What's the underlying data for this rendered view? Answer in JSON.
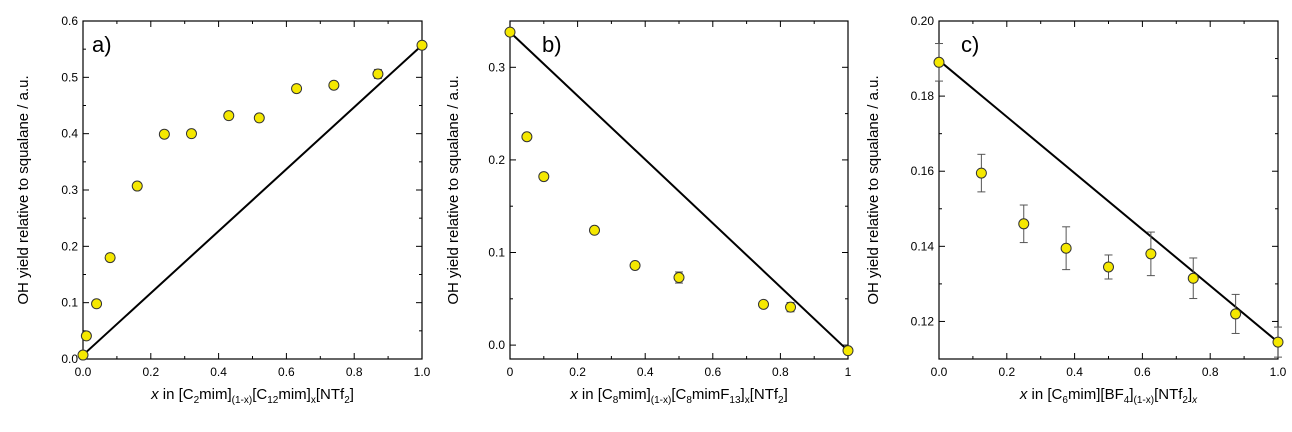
{
  "chart_data": [
    {
      "type": "scatter",
      "panel_label": "a)",
      "ylabel": "OH yield relative to squalane / a.u.",
      "xlabel": {
        "italic": "x",
        "parts": [
          {
            "t": " in [C"
          },
          {
            "t": "2",
            "sub": true
          },
          {
            "t": "mim]"
          },
          {
            "t": "(1-x)",
            "sub": true
          },
          {
            "t": "[C"
          },
          {
            "t": "12",
            "sub": true
          },
          {
            "t": "mim]"
          },
          {
            "t": "x",
            "sub": true
          },
          {
            "t": "[NTf"
          },
          {
            "t": "2",
            "sub": true
          },
          {
            "t": "]"
          }
        ]
      },
      "xlim": [
        0,
        1.0
      ],
      "ylim": [
        0,
        0.6
      ],
      "xticks": [
        "0.0",
        "0.2",
        "0.4",
        "0.6",
        "0.8",
        "1.0"
      ],
      "yticks": [
        "0.0",
        "0.1",
        "0.2",
        "0.3",
        "0.4",
        "0.5",
        "0.6"
      ],
      "points": [
        {
          "x": 0.0,
          "y": 0.007,
          "err": 0.006
        },
        {
          "x": 0.01,
          "y": 0.041,
          "err": 0.006
        },
        {
          "x": 0.04,
          "y": 0.098,
          "err": 0.006
        },
        {
          "x": 0.08,
          "y": 0.18,
          "err": 0.006
        },
        {
          "x": 0.16,
          "y": 0.307,
          "err": 0.006
        },
        {
          "x": 0.24,
          "y": 0.399,
          "err": 0.006
        },
        {
          "x": 0.32,
          "y": 0.4,
          "err": 0.006
        },
        {
          "x": 0.43,
          "y": 0.432,
          "err": 0.006
        },
        {
          "x": 0.52,
          "y": 0.428,
          "err": 0.006
        },
        {
          "x": 0.63,
          "y": 0.48,
          "err": 0.006
        },
        {
          "x": 0.74,
          "y": 0.486,
          "err": 0.006
        },
        {
          "x": 0.87,
          "y": 0.506,
          "err": 0.008
        },
        {
          "x": 1.0,
          "y": 0.557,
          "err": 0.006
        }
      ],
      "line": [
        [
          0.0,
          0.007
        ],
        [
          1.0,
          0.557
        ]
      ],
      "marker_color": "#f5e800",
      "error_bar_color": "#555555"
    },
    {
      "type": "scatter",
      "panel_label": "b)",
      "ylabel": "OH yield relative to squalane / a.u.",
      "xlabel": {
        "italic": "x",
        "parts": [
          {
            "t": " in [C"
          },
          {
            "t": "8",
            "sub": true
          },
          {
            "t": "mim]"
          },
          {
            "t": "(1-x)",
            "sub": true
          },
          {
            "t": "[C"
          },
          {
            "t": "8",
            "sub": true
          },
          {
            "t": "mimF"
          },
          {
            "t": "13",
            "sub": true
          },
          {
            "t": "]"
          },
          {
            "t": "x",
            "sub": true
          },
          {
            "t": "[NTf"
          },
          {
            "t": "2",
            "sub": true
          },
          {
            "t": "]"
          }
        ]
      },
      "xlim": [
        0,
        1.0
      ],
      "ylim": [
        -0.015,
        0.35
      ],
      "xticks": [
        "0",
        "0.2",
        "0.4",
        "0.6",
        "0.8",
        "1"
      ],
      "yticks": [
        "0.0",
        "0.1",
        "0.2",
        "0.3"
      ],
      "ytick_values": [
        0.0,
        0.1,
        0.2,
        0.3
      ],
      "points": [
        {
          "x": 0.0,
          "y": 0.338,
          "err": 0.003
        },
        {
          "x": 0.05,
          "y": 0.225,
          "err": 0.003
        },
        {
          "x": 0.1,
          "y": 0.182,
          "err": 0.003
        },
        {
          "x": 0.25,
          "y": 0.124,
          "err": 0.003
        },
        {
          "x": 0.37,
          "y": 0.086,
          "err": 0.003
        },
        {
          "x": 0.5,
          "y": 0.073,
          "err": 0.006
        },
        {
          "x": 0.75,
          "y": 0.044,
          "err": 0.003
        },
        {
          "x": 0.83,
          "y": 0.041,
          "err": 0.005
        },
        {
          "x": 1.0,
          "y": -0.006,
          "err": 0.003
        }
      ],
      "line": [
        [
          0.0,
          0.338
        ],
        [
          1.0,
          -0.006
        ]
      ],
      "marker_color": "#f5e800",
      "error_bar_color": "#555555"
    },
    {
      "type": "scatter",
      "panel_label": "c)",
      "ylabel": "OH yield relative to squalane / a.u.",
      "xlabel": {
        "italic": "x",
        "parts": [
          {
            "t": " in [C"
          },
          {
            "t": "6",
            "sub": true
          },
          {
            "t": "mim][BF"
          },
          {
            "t": "4",
            "sub": true
          },
          {
            "t": "]"
          },
          {
            "t": "(1-x)",
            "sub": true
          },
          {
            "t": "[NTf"
          },
          {
            "t": "2",
            "sub": true
          },
          {
            "t": "]"
          },
          {
            "t": "x",
            "sub": true,
            "italic": true
          }
        ]
      },
      "xlim": [
        0,
        1.0
      ],
      "ylim": [
        0.11,
        0.2
      ],
      "xticks": [
        "0.0",
        "0.2",
        "0.4",
        "0.6",
        "0.8",
        "1.0"
      ],
      "yticks": [
        "0.12",
        "0.14",
        "0.16",
        "0.18",
        "0.20"
      ],
      "ytick_values": [
        0.12,
        0.14,
        0.16,
        0.18,
        0.2
      ],
      "points": [
        {
          "x": 0.0,
          "y": 0.189,
          "err": 0.005
        },
        {
          "x": 0.125,
          "y": 0.1595,
          "err": 0.005
        },
        {
          "x": 0.25,
          "y": 0.146,
          "err": 0.005
        },
        {
          "x": 0.375,
          "y": 0.1395,
          "err": 0.0057
        },
        {
          "x": 0.5,
          "y": 0.1345,
          "err": 0.0032
        },
        {
          "x": 0.625,
          "y": 0.138,
          "err": 0.0058
        },
        {
          "x": 0.75,
          "y": 0.1315,
          "err": 0.0054
        },
        {
          "x": 0.875,
          "y": 0.122,
          "err": 0.0052
        },
        {
          "x": 1.0,
          "y": 0.1145,
          "err": 0.004
        }
      ],
      "line": [
        [
          0.0,
          0.1895
        ],
        [
          1.0,
          0.1145
        ]
      ],
      "marker_color": "#f5e800",
      "error_bar_color": "#555555"
    }
  ]
}
